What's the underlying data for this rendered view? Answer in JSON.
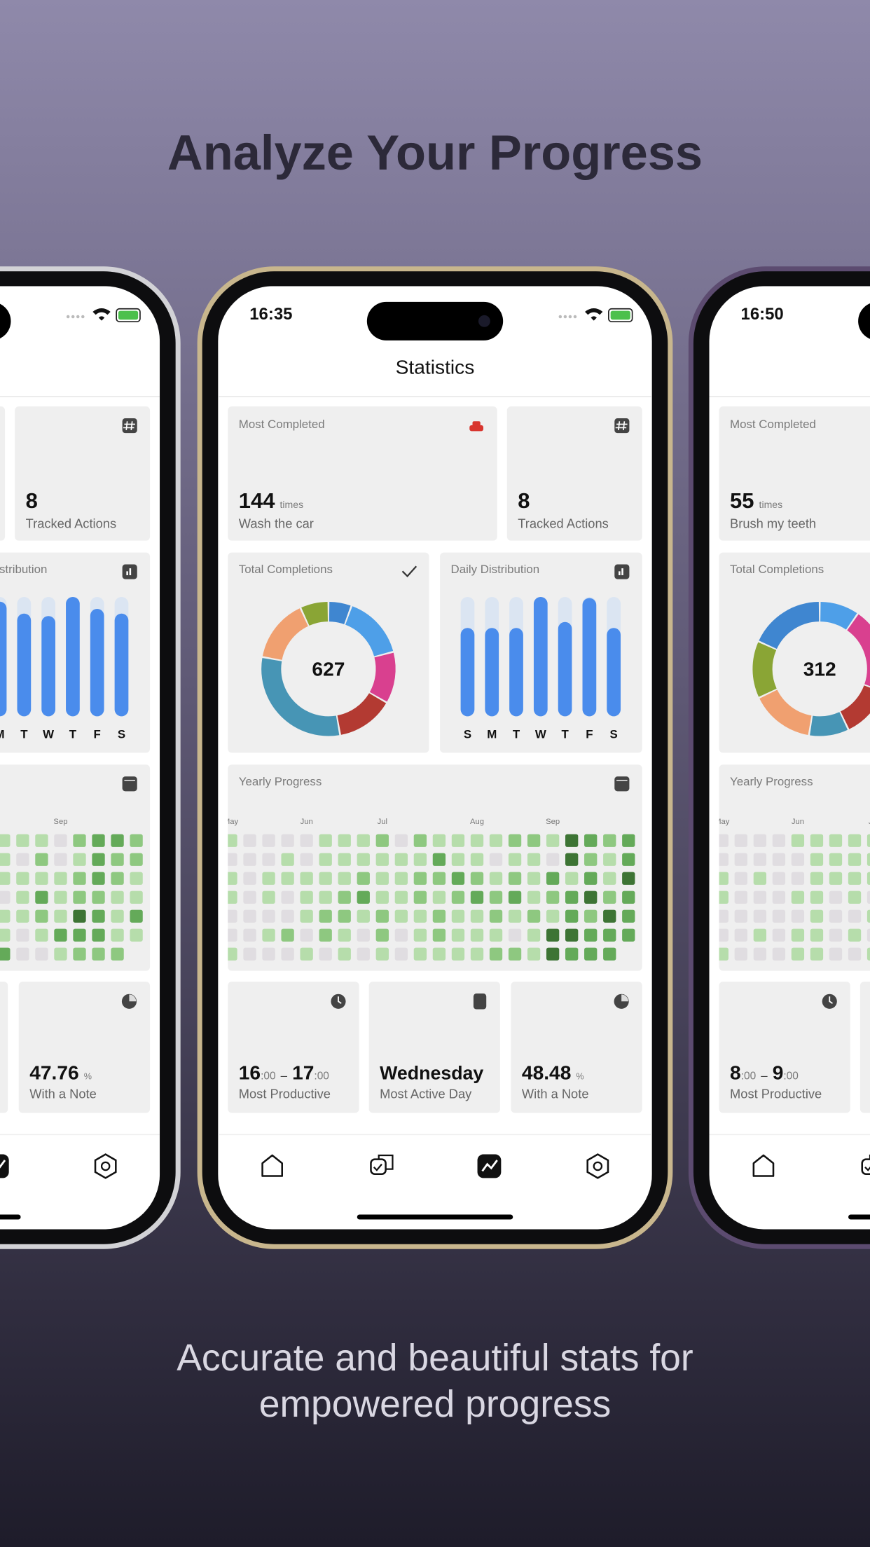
{
  "title": "Analyze Your Progress",
  "subtitle": [
    "Accurate and beautiful stats for",
    "empowered progress"
  ],
  "heat_colors": [
    "#e0dde1",
    "#b6ddab",
    "#8ec880",
    "#64aa59",
    "#3d7434"
  ],
  "phones": [
    {
      "tracked": {
        "value": 8,
        "label": "Tracked Actions"
      },
      "daily": {
        "label": "Daily Distribution",
        "days": [
          "M",
          "T",
          "W",
          "T",
          "F",
          "S"
        ],
        "values": [
          96,
          86,
          84,
          100,
          90,
          86
        ],
        "ylim": [
          0,
          100
        ],
        "color": "#4a8cec",
        "track_color": "#dbe5f2"
      },
      "yearly": {
        "weeks": [
          null,
          null,
          null,
          "Sep",
          null,
          null,
          null,
          null
        ],
        "levels": [
          [
            1,
            1,
            1,
            0,
            2,
            3,
            3,
            2
          ],
          [
            1,
            0,
            2,
            0,
            1,
            3,
            2,
            2
          ],
          [
            1,
            1,
            1,
            1,
            2,
            3,
            2,
            1
          ],
          [
            0,
            1,
            3,
            1,
            2,
            2,
            1,
            1
          ],
          [
            1,
            1,
            2,
            1,
            4,
            3,
            1,
            3
          ],
          [
            1,
            0,
            1,
            3,
            3,
            3,
            1,
            1
          ],
          [
            3,
            0,
            0,
            1,
            2,
            2,
            2,
            null
          ]
        ]
      },
      "note": {
        "value": 47.76,
        "unit": "%",
        "label": "With a Note"
      }
    },
    {
      "time": "16:35",
      "screen_title": "Statistics",
      "most_completed": {
        "label": "Most Completed",
        "value": 144,
        "unit": "times",
        "action": "Wash the car"
      },
      "tracked": {
        "value": 8,
        "label": "Tracked Actions"
      },
      "total": {
        "label": "Total Completions",
        "value": 627,
        "segments": [
          {
            "color": "#3f86d0",
            "value": 35
          },
          {
            "color": "#4e9fe8",
            "value": 96
          },
          {
            "color": "#d9408f",
            "value": 78
          },
          {
            "color": "#b33a32",
            "value": 87
          },
          {
            "color": "#4795b5",
            "value": 192
          },
          {
            "color": "#f0a070",
            "value": 96
          },
          {
            "color": "#8aa535",
            "value": 43
          }
        ]
      },
      "daily": {
        "label": "Daily Distribution",
        "days": [
          "S",
          "M",
          "T",
          "W",
          "T",
          "F",
          "S"
        ],
        "values": [
          74,
          74,
          74,
          100,
          79,
          99,
          74
        ],
        "ylim": [
          0,
          100
        ],
        "color": "#4a8cec",
        "track_color": "#dbe5f2"
      },
      "yearly": {
        "label": "Yearly Progress",
        "weeks": [
          "May",
          null,
          null,
          null,
          "Jun",
          null,
          null,
          null,
          "Jul",
          null,
          null,
          null,
          null,
          "Aug",
          null,
          null,
          null,
          "Sep",
          null,
          null,
          null,
          null
        ],
        "levels": [
          [
            1,
            0,
            0,
            0,
            0,
            1,
            1,
            1,
            2,
            0,
            2,
            1,
            1,
            1,
            1,
            2,
            2,
            1,
            4,
            3,
            2,
            3
          ],
          [
            0,
            0,
            0,
            1,
            0,
            1,
            1,
            1,
            1,
            1,
            1,
            3,
            1,
            1,
            0,
            1,
            1,
            0,
            4,
            2,
            1,
            3
          ],
          [
            1,
            0,
            1,
            1,
            1,
            1,
            1,
            2,
            1,
            1,
            2,
            2,
            3,
            2,
            1,
            2,
            1,
            3,
            1,
            3,
            1,
            4
          ],
          [
            1,
            0,
            1,
            0,
            1,
            1,
            2,
            3,
            1,
            1,
            2,
            1,
            2,
            3,
            2,
            3,
            1,
            2,
            3,
            4,
            2,
            3
          ],
          [
            0,
            0,
            0,
            0,
            1,
            2,
            2,
            1,
            2,
            1,
            1,
            2,
            1,
            1,
            2,
            1,
            2,
            1,
            3,
            2,
            4,
            3
          ],
          [
            0,
            0,
            1,
            2,
            0,
            2,
            1,
            0,
            2,
            0,
            1,
            2,
            1,
            1,
            1,
            0,
            1,
            4,
            4,
            3,
            3,
            3
          ],
          [
            1,
            0,
            0,
            0,
            1,
            0,
            1,
            0,
            1,
            0,
            1,
            1,
            1,
            1,
            2,
            2,
            1,
            4,
            3,
            3,
            3,
            null
          ]
        ]
      },
      "productive": {
        "from": 16,
        "to": 17,
        "minutes": ":00",
        "dash": "–",
        "label": "Most Productive"
      },
      "active_day": {
        "value": "Wednesday",
        "label": "Most Active Day"
      },
      "note": {
        "value": 48.48,
        "unit": "%",
        "label": "With a Note"
      }
    },
    {
      "time": "16:50",
      "most_completed": {
        "label": "Most Completed",
        "value": 55,
        "unit": "times",
        "action": "Brush my teeth"
      },
      "total": {
        "label": "Total Completions",
        "value": 312,
        "segments": [
          {
            "color": "#4e9fe8",
            "value": 30
          },
          {
            "color": "#d9408f",
            "value": 65
          },
          {
            "color": "#b33a32",
            "value": 39
          },
          {
            "color": "#4795b5",
            "value": 30
          },
          {
            "color": "#f0a070",
            "value": 48
          },
          {
            "color": "#8aa535",
            "value": 43
          },
          {
            "color": "#3f86d0",
            "value": 57
          }
        ]
      },
      "yearly": {
        "label": "Yearly Progress",
        "weeks": [
          "May",
          null,
          null,
          null,
          "Jun",
          null,
          null,
          null,
          "Jul"
        ],
        "levels": [
          [
            0,
            0,
            0,
            0,
            1,
            1,
            1,
            1,
            1
          ],
          [
            0,
            0,
            0,
            0,
            0,
            1,
            1,
            1,
            1
          ],
          [
            1,
            0,
            1,
            0,
            0,
            1,
            1,
            1,
            1
          ],
          [
            1,
            0,
            0,
            0,
            1,
            1,
            0,
            1,
            0
          ],
          [
            0,
            0,
            0,
            0,
            0,
            1,
            0,
            0,
            1
          ],
          [
            0,
            0,
            1,
            0,
            1,
            1,
            0,
            1,
            0
          ],
          [
            1,
            0,
            0,
            0,
            1,
            1,
            0,
            0,
            1
          ]
        ]
      },
      "productive": {
        "from": 8,
        "to": 9,
        "minutes": ":00",
        "dash": "–",
        "label": "Most Productive"
      }
    }
  ]
}
